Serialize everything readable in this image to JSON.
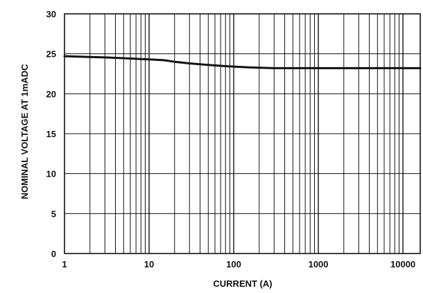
{
  "chart_data": {
    "type": "line",
    "title": "",
    "xlabel": "CURRENT (A)",
    "ylabel": "NOMINAL VOLTAGE AT 1mADC",
    "x_scale": "log",
    "xlim": [
      1,
      16000
    ],
    "ylim": [
      0,
      30
    ],
    "x_ticks": [
      1,
      10,
      100,
      1000,
      10000
    ],
    "x_tick_labels": [
      "1",
      "10",
      "100",
      "1000",
      "10000"
    ],
    "y_ticks": [
      0,
      5,
      10,
      15,
      20,
      25,
      30
    ],
    "y_tick_labels": [
      "0",
      "5",
      "10",
      "15",
      "20",
      "25",
      "30"
    ],
    "grid": true,
    "series": [
      {
        "x": [
          1,
          2,
          3,
          5,
          8,
          10,
          15,
          20,
          30,
          50,
          80,
          100,
          150,
          200,
          300,
          500,
          1000,
          2000,
          5000,
          10000,
          16000
        ],
        "y": [
          24.7,
          24.6,
          24.55,
          24.45,
          24.35,
          24.3,
          24.2,
          24.0,
          23.8,
          23.6,
          23.45,
          23.4,
          23.3,
          23.25,
          23.2,
          23.2,
          23.2,
          23.2,
          23.2,
          23.2,
          23.2
        ]
      }
    ]
  }
}
